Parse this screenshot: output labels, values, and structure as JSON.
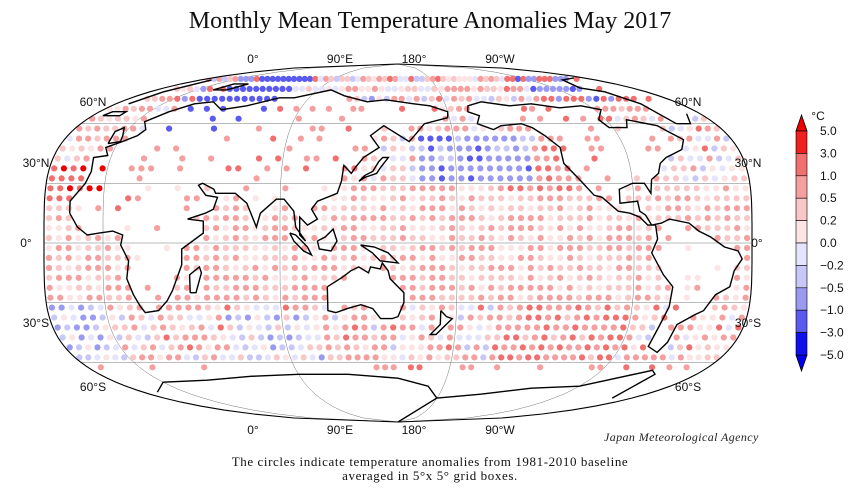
{
  "title": "Monthly Mean Temperature Anomalies May 2017",
  "credit": "Japan Meteorological Agency",
  "caption_line1": "The circles indicate temperature anomalies from 1981-2010 baseline",
  "caption_line2": "averaged in 5°x 5° grid boxes.",
  "legend": {
    "unit": "°C",
    "ticks": [
      "5.0",
      "3.0",
      "1.0",
      "0.5",
      "0.2",
      "0.0",
      "−0.2",
      "−0.5",
      "−1.0",
      "−3.0",
      "−5.0"
    ],
    "colors": [
      "#ee0000",
      "#f07070",
      "#f4a0a0",
      "#f8c8c8",
      "#fce4e4",
      "#ffffff",
      "#e4e4fc",
      "#c8c8f8",
      "#9a9af0",
      "#5a5aee",
      "#0000ee"
    ]
  },
  "map": {
    "lon_labels": [
      "0°",
      "90°E",
      "180°",
      "90°W"
    ],
    "lat_labels": {
      "left": [
        "60°N",
        "30°N",
        "0°",
        "30°S",
        "60°S"
      ],
      "right": [
        "60°N",
        "30°N",
        "0°",
        "30°S",
        "60°S"
      ]
    }
  },
  "chart_data": {
    "type": "map-grid",
    "grid": "5° x 5°",
    "description_regions": [
      {
        "region": "Arctic/Eastern Europe-Western Russia",
        "anomaly": "negative (-1.0 to -5.0)"
      },
      {
        "region": "North Atlantic / Europe mid-latitudes",
        "anomaly": "positive (0.5 to 3.0)"
      },
      {
        "region": "Western Sahara / North Africa",
        "anomaly": "positive (1.0 to 3.0)"
      },
      {
        "region": "North Pacific",
        "anomaly": "mixed, negative patches"
      },
      {
        "region": "Tropics",
        "anomaly": "mostly positive (0.2 to 1.0)"
      }
    ]
  }
}
